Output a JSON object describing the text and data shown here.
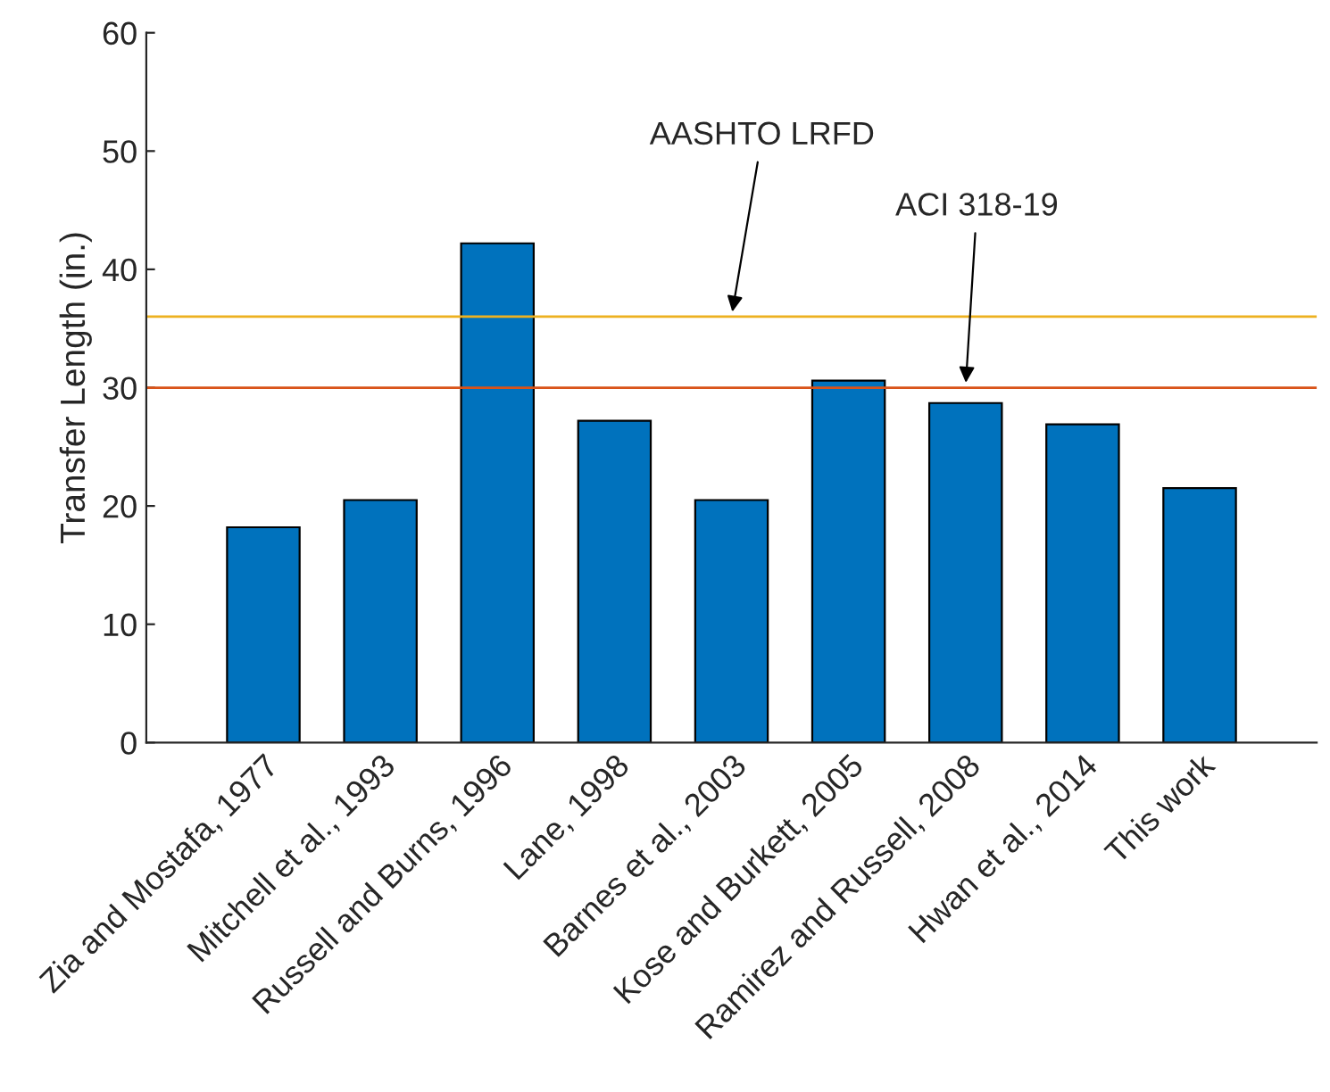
{
  "chart_data": {
    "type": "bar",
    "ylabel": "Transfer Length (in.)",
    "categories": [
      "Zia and Mostafa, 1977",
      "Mitchell et al., 1993",
      "Russell and Burns, 1996",
      "Lane, 1998",
      "Barnes et al., 2003",
      "Kose and Burkett, 2005",
      "Ramirez and Russell, 2008",
      "Hwan et al., 2014",
      "This work"
    ],
    "values": [
      18.2,
      20.5,
      42.2,
      27.2,
      20.5,
      30.6,
      28.7,
      26.9,
      21.5
    ],
    "color": "#0072bd",
    "ylim": [
      0,
      60
    ],
    "yticks": [
      0,
      10,
      20,
      30,
      40,
      50,
      60
    ],
    "grid": false,
    "ref_lines": [
      {
        "axis": "y",
        "value": 36,
        "color": "#edb120"
      },
      {
        "axis": "y",
        "value": 30,
        "color": "#d95319"
      }
    ],
    "annotations": [
      {
        "text": "AASHTO LRFD",
        "x": "Barnes et al., 2003",
        "y": 36
      },
      {
        "text": "ACI 318-19",
        "x": "Ramirez and Russell, 2008",
        "y": 30
      }
    ]
  }
}
